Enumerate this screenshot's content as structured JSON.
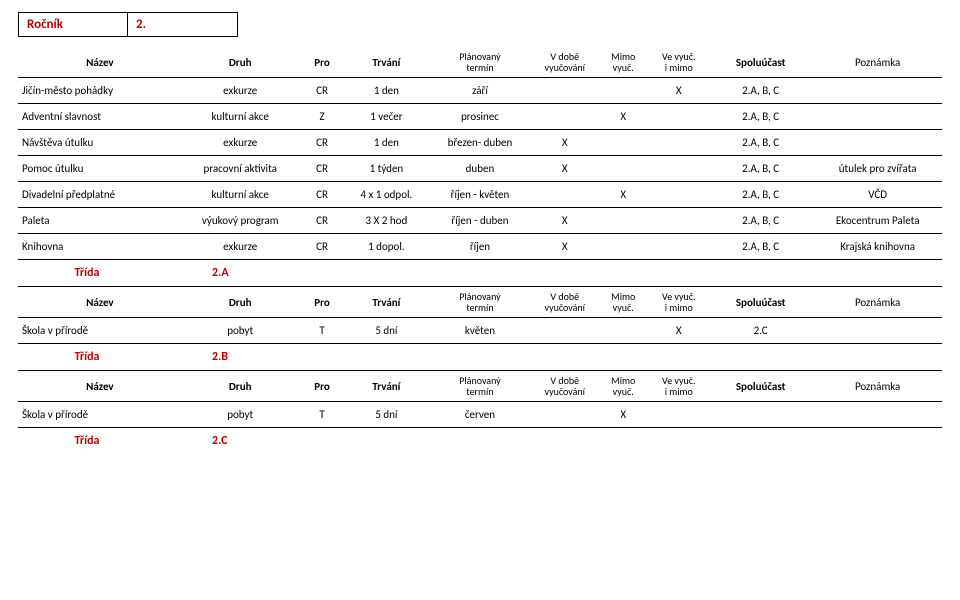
{
  "rocnik": {
    "label": "Ročník",
    "value": "2."
  },
  "headers": {
    "nazev": "Název",
    "druh": "Druh",
    "pro": "Pro",
    "trvani": "Trvání",
    "termin1": "Plánovaný",
    "termin2": "termín",
    "vdobe1": "V době",
    "vdobe2": "vyučování",
    "mimo1": "Mimo",
    "mimo2": "vyuč.",
    "vevyuc1": "Ve vyuč.",
    "vevyuc2": "i mimo",
    "spolu": "Spoluúčast",
    "pozn": "Poznámka"
  },
  "main_rows": [
    {
      "n": "Jičín-město pohádky",
      "d": "exkurze",
      "p": "CR",
      "t": "1 den",
      "pl": "září",
      "c1": "",
      "c2": "",
      "c3": "X",
      "sp": "2.A, B, C",
      "po": ""
    },
    {
      "n": "Adventní slavnost",
      "d": "kulturní akce",
      "p": "Z",
      "t": "1 večer",
      "pl": "prosinec",
      "c1": "",
      "c2": "X",
      "c3": "",
      "sp": "2.A, B, C",
      "po": ""
    },
    {
      "n": "Návštěva útulku",
      "d": "exkurze",
      "p": "CR",
      "t": "1 den",
      "pl": "březen- duben",
      "c1": "X",
      "c2": "",
      "c3": "",
      "sp": "2.A, B, C",
      "po": ""
    },
    {
      "n": "Pomoc útulku",
      "d": "pracovní aktivita",
      "p": "CR",
      "t": "1 týden",
      "pl": "duben",
      "c1": "X",
      "c2": "",
      "c3": "",
      "sp": "2.A, B, C",
      "po": "útulek pro zvířata"
    },
    {
      "n": "Divadelní předplatné",
      "d": "kulturní akce",
      "p": "CR",
      "t": "4 x 1 odpol.",
      "pl": "říjen - květen",
      "c1": "",
      "c2": "X",
      "c3": "",
      "sp": "2.A, B, C",
      "po": "VČD"
    },
    {
      "n": "Paleta",
      "d": "výukový program",
      "p": "CR",
      "t": "3 X 2 hod",
      "pl": "říjen - duben",
      "c1": "X",
      "c2": "",
      "c3": "",
      "sp": "2.A, B, C",
      "po": "Ekocentrum Paleta"
    },
    {
      "n": "Knihovna",
      "d": "exkurze",
      "p": "CR",
      "t": "1 dopol.",
      "pl": "říjen",
      "c1": "X",
      "c2": "",
      "c3": "",
      "sp": "2.A, B, C",
      "po": "Krajská knihovna"
    }
  ],
  "tridaA": {
    "label": "Třída",
    "value": "2.A"
  },
  "rowsA": [
    {
      "n": "Škola v přírodě",
      "d": "pobyt",
      "p": "T",
      "t": "5 dní",
      "pl": "květen",
      "c1": "",
      "c2": "",
      "c3": "X",
      "sp": "2.C",
      "po": ""
    }
  ],
  "tridaB": {
    "label": "Třída",
    "value": "2.B"
  },
  "rowsB": [
    {
      "n": "Škola v přírodě",
      "d": "pobyt",
      "p": "T",
      "t": "5 dní",
      "pl": "červen",
      "c1": "",
      "c2": "X",
      "c3": "",
      "sp": "",
      "po": ""
    }
  ],
  "tridaC": {
    "label": "Třída",
    "value": "2.C"
  },
  "cols": {
    "nazev": 140,
    "druh": 100,
    "pro": 40,
    "trvani": 70,
    "termin": 90,
    "c1": 55,
    "c2": 45,
    "c3": 50,
    "spolu": 90,
    "pozn": 110
  }
}
